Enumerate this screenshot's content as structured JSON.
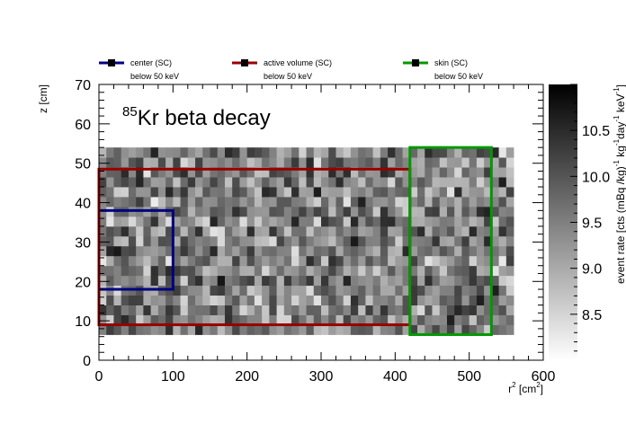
{
  "chart_data": {
    "type": "heatmap",
    "xlabel": "r",
    "xlabel_sup": "2",
    "xlabel_unit": "[cm",
    "xlabel_unit_sup": "2",
    "xlabel_close": "]",
    "ylabel": "z [cm]",
    "xlim": [
      0,
      600
    ],
    "ylim": [
      0,
      70
    ],
    "x_ticks": [
      "0",
      "100",
      "200",
      "300",
      "400",
      "500",
      "600"
    ],
    "y_ticks": [
      "0",
      "10",
      "20",
      "30",
      "40",
      "50",
      "60",
      "70"
    ],
    "annotation": {
      "sup": "85",
      "text": "Kr beta decay"
    },
    "colorbar": {
      "label_parts": [
        {
          "t": "event rate [cts (mBq /kg)"
        },
        {
          "t": "-1",
          "sup": true
        },
        {
          "t": " kg"
        },
        {
          "t": "-1",
          "sup": true
        },
        {
          "t": "day"
        },
        {
          "t": "-1",
          "sup": true
        },
        {
          "t": " keV"
        },
        {
          "t": "-1",
          "sup": true
        },
        {
          "t": "]"
        }
      ],
      "range": [
        8.0,
        11.0
      ],
      "ticks": [
        "8.5",
        "9.0",
        "9.5",
        "10.0",
        "10.5"
      ],
      "tick_values": [
        8.5,
        9.0,
        9.5,
        10.0,
        10.5
      ]
    },
    "heatmap": {
      "x_extent": [
        0,
        560
      ],
      "y_extent": [
        6.5,
        54
      ],
      "bins_x": 56,
      "bins_y": 19,
      "value_range": [
        8.0,
        11.0
      ],
      "pattern": "noise"
    },
    "series": [
      {
        "name": "center (SC)",
        "note": "below 50 keV",
        "color": "#000080",
        "region": {
          "r2": [
            0,
            100
          ],
          "z": [
            18,
            38
          ]
        }
      },
      {
        "name": "active volume (SC)",
        "note": "below 50 keV",
        "color": "#990000",
        "region": {
          "r2": [
            0,
            420
          ],
          "z": [
            9,
            48.5
          ]
        }
      },
      {
        "name": "skin (SC)",
        "note": "below 50 keV",
        "color": "#009900",
        "region": {
          "r2": [
            420,
            530
          ],
          "z": [
            6.5,
            54
          ]
        }
      }
    ]
  }
}
